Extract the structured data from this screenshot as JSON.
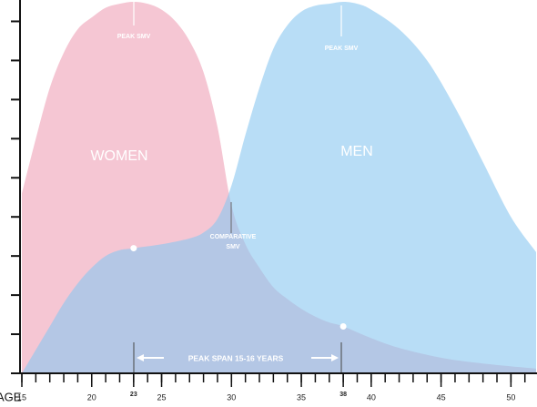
{
  "chart_data": {
    "type": "area",
    "x_label": "AGE",
    "series": [
      {
        "name": "WOMEN",
        "color": "#f5c6d3",
        "x": [
          15,
          16,
          17,
          18,
          19,
          20,
          21,
          22,
          23,
          24,
          25,
          26,
          27,
          28,
          29,
          30,
          31,
          32,
          33,
          34,
          35,
          36,
          37,
          38,
          40,
          42,
          45,
          48,
          51.8
        ],
        "values": [
          4.6,
          6.0,
          7.3,
          8.2,
          8.8,
          9.1,
          9.35,
          9.45,
          9.5,
          9.45,
          9.3,
          9.0,
          8.5,
          7.7,
          6.3,
          4.3,
          3.3,
          2.7,
          2.2,
          1.9,
          1.65,
          1.45,
          1.3,
          1.2,
          0.9,
          0.65,
          0.4,
          0.25,
          0.12
        ]
      },
      {
        "name": "MEN",
        "color": "#8cc8f0",
        "x": [
          15,
          16,
          17,
          18,
          19,
          20,
          21,
          22,
          23,
          25,
          27,
          28,
          29,
          30,
          31,
          32,
          33,
          34,
          35,
          36,
          37,
          38,
          39,
          40,
          42,
          44,
          46,
          48,
          50,
          51.8
        ],
        "values": [
          0,
          0.6,
          1.2,
          1.8,
          2.3,
          2.7,
          3.0,
          3.15,
          3.2,
          3.3,
          3.45,
          3.6,
          3.95,
          4.8,
          6.1,
          7.3,
          8.3,
          8.9,
          9.25,
          9.4,
          9.45,
          9.5,
          9.45,
          9.3,
          8.8,
          8.0,
          6.8,
          5.4,
          4.0,
          3.1
        ]
      }
    ],
    "xlim": [
      15,
      51.8
    ],
    "ylim": [
      0,
      9.5
    ],
    "xticks": [
      15,
      20,
      23,
      25,
      30,
      35,
      38,
      40,
      45,
      50
    ],
    "xminorticks": [
      15,
      16,
      17,
      18,
      19,
      20,
      21,
      22,
      23,
      24,
      25,
      26,
      27,
      28,
      29,
      30,
      31,
      32,
      33,
      34,
      35,
      36,
      37,
      38,
      39,
      40,
      41,
      42,
      43,
      44,
      45,
      46,
      47,
      48,
      49,
      50,
      51
    ],
    "yticks": [
      0,
      1,
      2,
      3,
      4,
      5,
      6,
      7,
      8,
      9
    ],
    "annotations": {
      "peak_women": "PEAK SMV",
      "peak_men": "PEAK SMV",
      "comparative": [
        "COMPARATIVE",
        "SMV"
      ],
      "peak_span": "PEAK SPAN 15-16 YEARS"
    }
  }
}
